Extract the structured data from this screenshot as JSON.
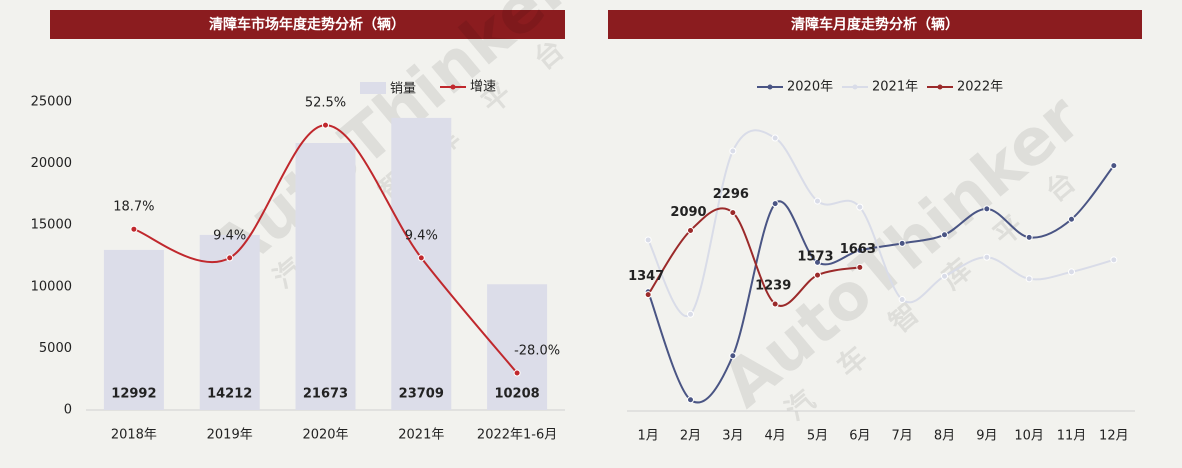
{
  "chart_data": [
    {
      "type": "bar",
      "title": "清障车市场年度走势分析（辆）",
      "categories": [
        "2018年",
        "2019年",
        "2020年",
        "2021年",
        "2022年1-6月"
      ],
      "series": [
        {
          "name": "销量",
          "type": "bar",
          "color": "#dcdde9",
          "values": [
            12992,
            14212,
            21673,
            23709,
            10208
          ]
        },
        {
          "name": "增速",
          "type": "line",
          "axis": "y2",
          "color": "#c0282d",
          "values": [
            18.7,
            9.4,
            52.5,
            9.4,
            -28.0
          ],
          "value_labels": [
            "18.7%",
            "9.4%",
            "52.5%",
            "9.4%",
            "-28.0%"
          ]
        }
      ],
      "ylim": [
        0,
        25000
      ],
      "yticks": [
        0,
        5000,
        10000,
        15000,
        20000,
        25000
      ],
      "y2lim": [
        -40,
        60
      ],
      "legend": "top"
    },
    {
      "type": "line",
      "title": "清障车月度走势分析（辆）",
      "categories": [
        "1月",
        "2月",
        "3月",
        "4月",
        "5月",
        "6月",
        "7月",
        "8月",
        "9月",
        "10月",
        "11月",
        "12月"
      ],
      "series": [
        {
          "name": "2020年",
          "color": "#4a5584",
          "values": [
            1380,
            130,
            640,
            2400,
            1720,
            1860,
            1940,
            2040,
            2340,
            2010,
            2220,
            2840
          ]
        },
        {
          "name": "2021年",
          "color": "#d9dce8",
          "values": [
            1980,
            1120,
            3010,
            3160,
            2430,
            2360,
            1290,
            1560,
            1780,
            1530,
            1610,
            1750
          ]
        },
        {
          "name": "2022年",
          "color": "#9b2a2a",
          "values": [
            1347,
            2090,
            2296,
            1239,
            1573,
            1663,
            null,
            null,
            null,
            null,
            null,
            null
          ],
          "show_labels": true
        }
      ],
      "ylim": [
        0,
        3600
      ],
      "legend": "top"
    }
  ],
  "watermark": [
    "AutoThinker",
    "汽车智库平台"
  ]
}
